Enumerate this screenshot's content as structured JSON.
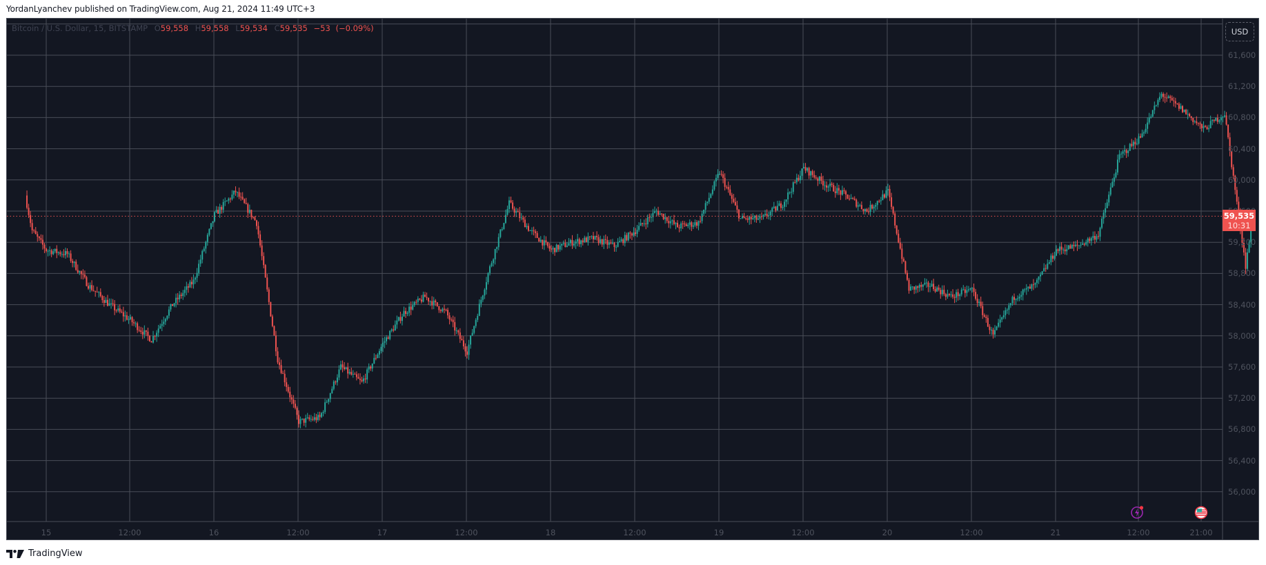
{
  "header": {
    "published_line": "YordanLyanchev published on TradingView.com, Aug 21, 2024 11:49 UTC+3"
  },
  "legend": {
    "symbol": "Bitcoin / U.S. Dollar, 15, BITSTAMP",
    "open_label": "O",
    "open": "59,558",
    "high_label": "H",
    "high": "59,558",
    "low_label": "L",
    "low": "59,534",
    "close_label": "C",
    "close": "59,535",
    "change": "−53",
    "change_pct": "(−0.09%)"
  },
  "currency_button": "USD",
  "price_tag": {
    "price": "59,535",
    "countdown": "10:31"
  },
  "footer": {
    "brand": "TradingView"
  },
  "colors": {
    "background": "#131722",
    "grid": "#4a4e58",
    "up": "#26a69a",
    "down": "#ef5350",
    "axis_text": "#4f535e",
    "event_icon": "#9c27b0"
  },
  "icons": [
    "lightning-event-icon",
    "us-flag-event-icon",
    "tradingview-logo-icon"
  ],
  "chart_data": {
    "type": "candlestick",
    "title": "Bitcoin / U.S. Dollar, 15, BITSTAMP",
    "interval": "15m",
    "xlabel": "",
    "ylabel": "USD",
    "ylim": [
      55700,
      62000
    ],
    "y_ticks": [
      56000,
      56400,
      56800,
      57200,
      57600,
      58000,
      58400,
      58800,
      59200,
      59600,
      60000,
      60400,
      60800,
      61200,
      61600
    ],
    "y_tick_labels": [
      "56,000",
      "56,400",
      "56,800",
      "57,200",
      "57,600",
      "58,000",
      "58,400",
      "58,800",
      "59,200",
      "59,600",
      "60,000",
      "60,400",
      "60,800",
      "61,200",
      "61,600"
    ],
    "x_tick_labels": [
      "15",
      "12:00",
      "16",
      "12:00",
      "17",
      "12:00",
      "18",
      "12:00",
      "19",
      "12:00",
      "20",
      "12:00",
      "21",
      "12:00",
      "21:00"
    ],
    "grid": true,
    "last_price": 59535,
    "last_ohlc": {
      "open": 59558,
      "high": 59558,
      "low": 59534,
      "close": 59535,
      "change": -53,
      "change_pct": -0.09
    },
    "price_path_anchors": {
      "note": "approximate close prices read from chart; hours since Aug 14 ~21:00",
      "hours": [
        0,
        1,
        3,
        6,
        9,
        12,
        15,
        18,
        21,
        24,
        27,
        30,
        33,
        36,
        39,
        42,
        45,
        48,
        51,
        54,
        57,
        60,
        63,
        66,
        69,
        72,
        75,
        78,
        81,
        84,
        87,
        90,
        93,
        96,
        99,
        102,
        105,
        108,
        111,
        114,
        117,
        120,
        123,
        126,
        129,
        132,
        135,
        138,
        141,
        144,
        147,
        150,
        153,
        156,
        159,
        162,
        165,
        168,
        171,
        174,
        175
      ],
      "close": [
        59800,
        59350,
        59100,
        59050,
        58650,
        58400,
        58200,
        57950,
        58400,
        58700,
        59550,
        59850,
        59450,
        57700,
        56900,
        56950,
        57600,
        57400,
        57900,
        58300,
        58500,
        58300,
        57800,
        58800,
        59700,
        59350,
        59100,
        59200,
        59250,
        59150,
        59350,
        59600,
        59400,
        59450,
        60100,
        59500,
        59500,
        59700,
        60150,
        59950,
        59800,
        59600,
        59850,
        58600,
        58650,
        58500,
        58600,
        58000,
        58500,
        58650,
        59100,
        59150,
        59300,
        60300,
        60550,
        61100,
        60900,
        60650,
        60850,
        58900,
        59535
      ]
    }
  }
}
